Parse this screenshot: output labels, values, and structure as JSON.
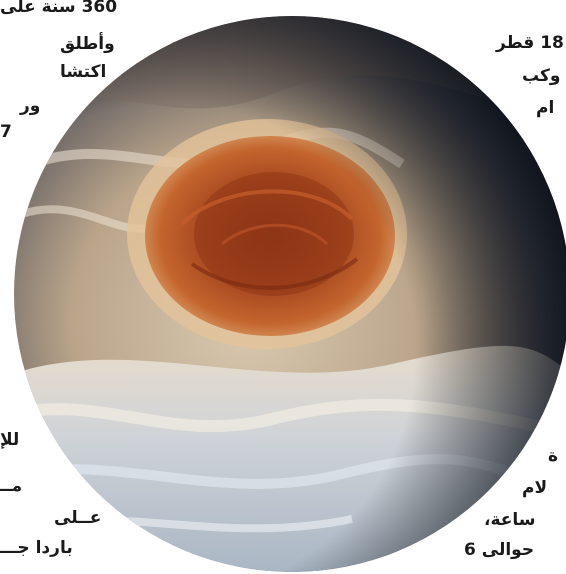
{
  "article": {
    "left_column_top": [
      "360 سنة على",
      "وأطلق",
      "اكتشا",
      "ور",
      "7"
    ],
    "right_column_top": [
      "18 قطر",
      "وكب",
      "ام"
    ],
    "left_column_bottom": [
      "للإ",
      "مــ",
      "عــلى",
      "باردا جـــ"
    ],
    "right_column_bottom": [
      "ة",
      "لام",
      "ساعة،",
      "حوالى 6"
    ]
  },
  "image": {
    "subject": "great-red-spot-photo",
    "colors": {
      "spot_core": "#a3441e",
      "spot_edge": "#c4652e",
      "band_light": "#e7dccb",
      "band_blue": "#b7c3d0",
      "limb_dark": "#0e1420",
      "background": "#ffffff"
    }
  }
}
